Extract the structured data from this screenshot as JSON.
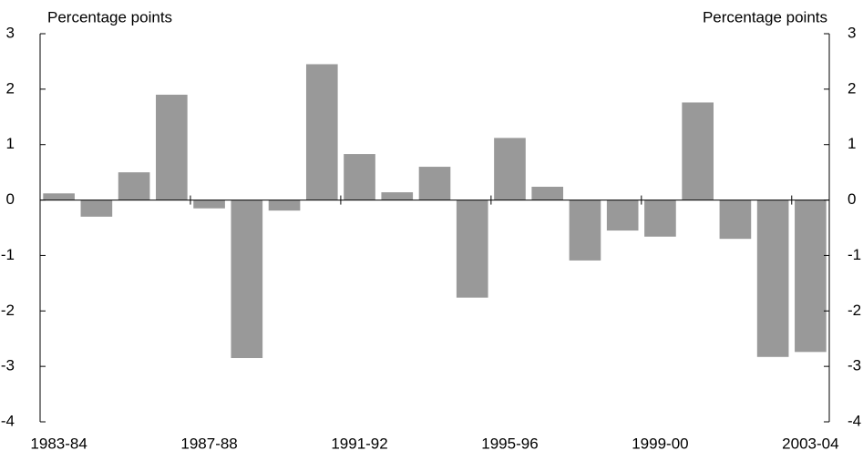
{
  "chart_data": {
    "type": "bar",
    "y_label": "Percentage points",
    "y2_label": "Percentage points",
    "categories": [
      "1983-84",
      null,
      null,
      null,
      "1987-88",
      null,
      null,
      null,
      "1991-92",
      null,
      null,
      null,
      "1995-96",
      null,
      null,
      null,
      "1999-00",
      null,
      null,
      null,
      "2003-04"
    ],
    "values": [
      0.12,
      -0.3,
      0.5,
      1.9,
      -0.15,
      -2.85,
      -0.19,
      2.45,
      0.83,
      0.14,
      0.6,
      -1.76,
      1.12,
      0.24,
      -1.09,
      -0.55,
      -0.66,
      1.76,
      -0.7,
      -2.83,
      -2.74
    ],
    "color": "#999999",
    "ylim": [
      -4,
      3
    ],
    "yticks": [
      -4,
      -3,
      -2,
      -1,
      0,
      1,
      2,
      3
    ],
    "grid": false
  }
}
